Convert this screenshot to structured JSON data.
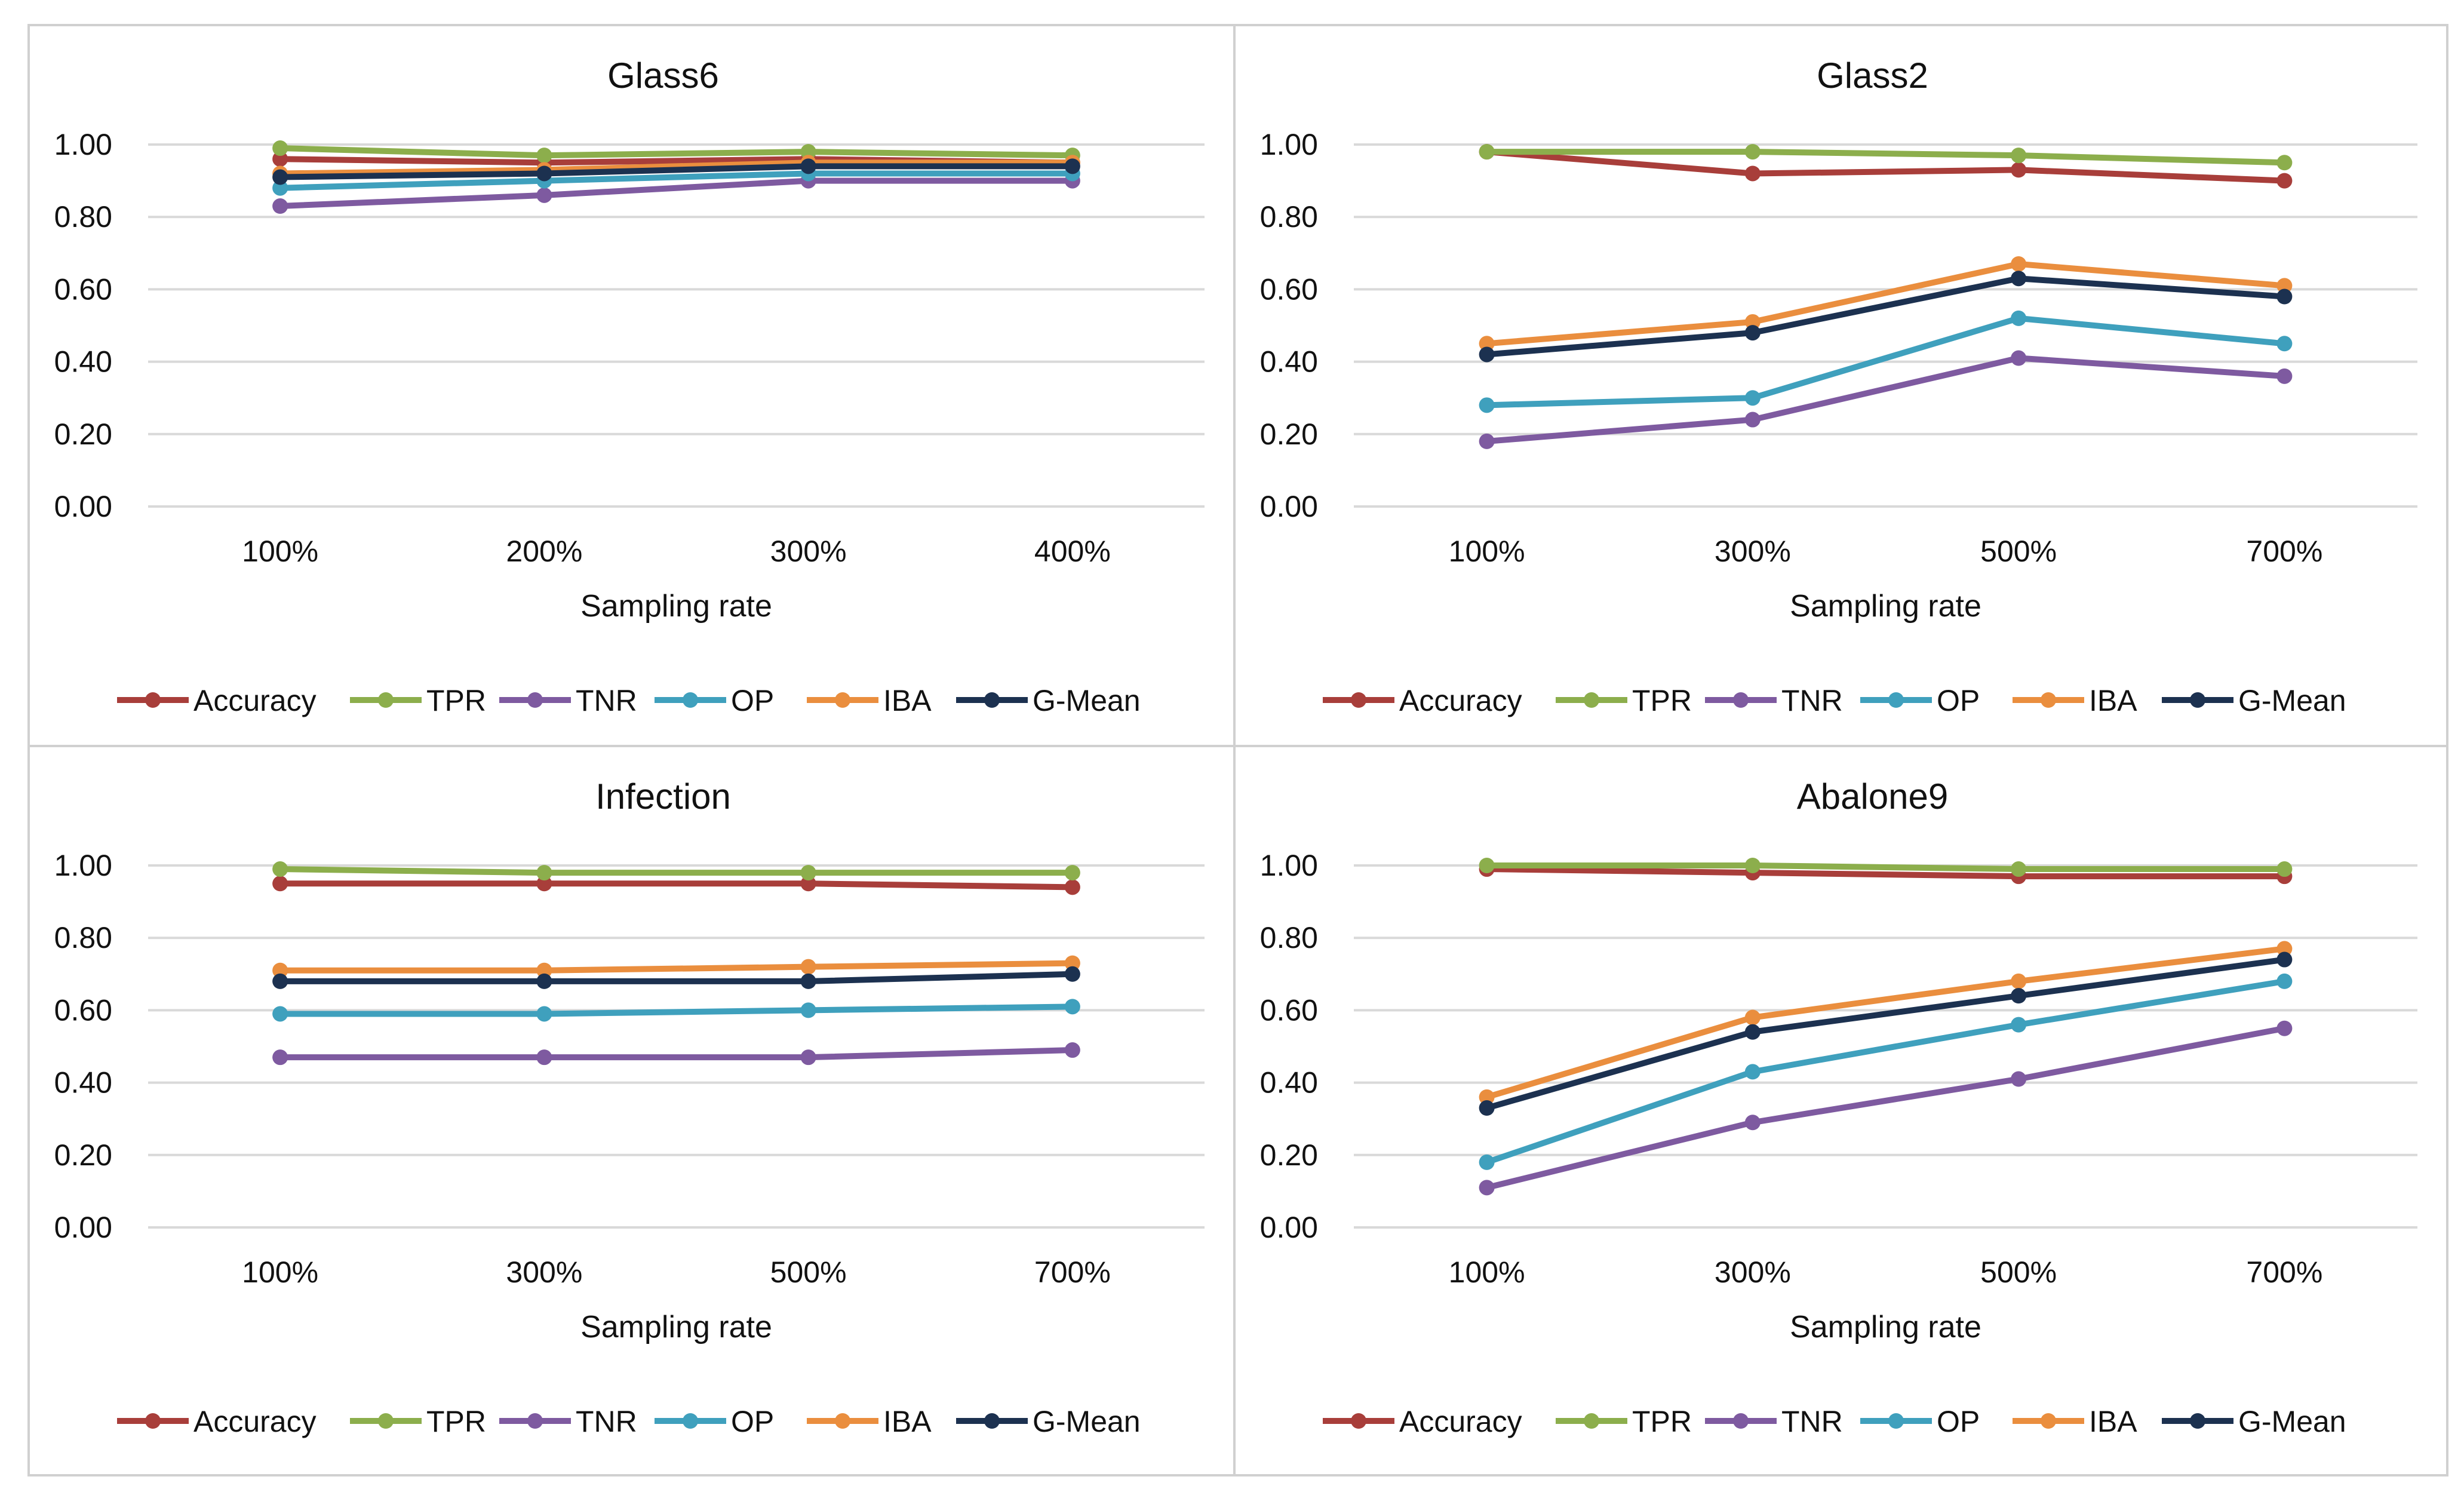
{
  "chart_data": [
    {
      "type": "line",
      "title": "Glass6",
      "xlabel": "Sampling rate",
      "ylabel": "",
      "categories": [
        "100%",
        "200%",
        "300%",
        "400%"
      ],
      "yticks": [
        "0.00",
        "0.20",
        "0.40",
        "0.60",
        "0.80",
        "1.00"
      ],
      "ylim": [
        0,
        1
      ],
      "grid": true,
      "legend_position": "bottom",
      "series": [
        {
          "name": "Accuracy",
          "color": "#A83E3A",
          "values": [
            0.96,
            0.95,
            0.96,
            0.95
          ]
        },
        {
          "name": "TPR",
          "color": "#8CAE4C",
          "values": [
            0.99,
            0.97,
            0.98,
            0.97
          ]
        },
        {
          "name": "TNR",
          "color": "#7E5AA0",
          "values": [
            0.83,
            0.86,
            0.9,
            0.9
          ]
        },
        {
          "name": "OP",
          "color": "#3FA0BD",
          "values": [
            0.88,
            0.9,
            0.92,
            0.92
          ]
        },
        {
          "name": "IBA",
          "color": "#EA8E3E",
          "values": [
            0.92,
            0.93,
            0.95,
            0.95
          ]
        },
        {
          "name": "G-Mean",
          "color": "#1C3150",
          "values": [
            0.91,
            0.92,
            0.94,
            0.94
          ]
        }
      ]
    },
    {
      "type": "line",
      "title": "Glass2",
      "xlabel": "Sampling rate",
      "ylabel": "",
      "categories": [
        "100%",
        "300%",
        "500%",
        "700%"
      ],
      "yticks": [
        "0.00",
        "0.20",
        "0.40",
        "0.60",
        "0.80",
        "1.00"
      ],
      "ylim": [
        0,
        1
      ],
      "grid": true,
      "legend_position": "bottom",
      "series": [
        {
          "name": "Accuracy",
          "color": "#A83E3A",
          "values": [
            0.98,
            0.92,
            0.93,
            0.9
          ]
        },
        {
          "name": "TPR",
          "color": "#8CAE4C",
          "values": [
            0.98,
            0.98,
            0.97,
            0.95
          ]
        },
        {
          "name": "TNR",
          "color": "#7E5AA0",
          "values": [
            0.18,
            0.24,
            0.41,
            0.36
          ]
        },
        {
          "name": "OP",
          "color": "#3FA0BD",
          "values": [
            0.28,
            0.3,
            0.52,
            0.45
          ]
        },
        {
          "name": "IBA",
          "color": "#EA8E3E",
          "values": [
            0.45,
            0.51,
            0.67,
            0.61
          ]
        },
        {
          "name": "G-Mean",
          "color": "#1C3150",
          "values": [
            0.42,
            0.48,
            0.63,
            0.58
          ]
        }
      ]
    },
    {
      "type": "line",
      "title": "Infection",
      "xlabel": "Sampling rate",
      "ylabel": "",
      "categories": [
        "100%",
        "300%",
        "500%",
        "700%"
      ],
      "yticks": [
        "0.00",
        "0.20",
        "0.40",
        "0.60",
        "0.80",
        "1.00"
      ],
      "ylim": [
        0,
        1
      ],
      "grid": true,
      "legend_position": "bottom",
      "series": [
        {
          "name": "Accuracy",
          "color": "#A83E3A",
          "values": [
            0.95,
            0.95,
            0.95,
            0.94
          ]
        },
        {
          "name": "TPR",
          "color": "#8CAE4C",
          "values": [
            0.99,
            0.98,
            0.98,
            0.98
          ]
        },
        {
          "name": "TNR",
          "color": "#7E5AA0",
          "values": [
            0.47,
            0.47,
            0.47,
            0.49
          ]
        },
        {
          "name": "OP",
          "color": "#3FA0BD",
          "values": [
            0.59,
            0.59,
            0.6,
            0.61
          ]
        },
        {
          "name": "IBA",
          "color": "#EA8E3E",
          "values": [
            0.71,
            0.71,
            0.72,
            0.73
          ]
        },
        {
          "name": "G-Mean",
          "color": "#1C3150",
          "values": [
            0.68,
            0.68,
            0.68,
            0.7
          ]
        }
      ]
    },
    {
      "type": "line",
      "title": "Abalone9",
      "xlabel": "Sampling rate",
      "ylabel": "",
      "categories": [
        "100%",
        "300%",
        "500%",
        "700%"
      ],
      "yticks": [
        "0.00",
        "0.20",
        "0.40",
        "0.60",
        "0.80",
        "1.00"
      ],
      "ylim": [
        0,
        1
      ],
      "grid": true,
      "legend_position": "bottom",
      "series": [
        {
          "name": "Accuracy",
          "color": "#A83E3A",
          "values": [
            0.99,
            0.98,
            0.97,
            0.97
          ]
        },
        {
          "name": "TPR",
          "color": "#8CAE4C",
          "values": [
            1.0,
            1.0,
            0.99,
            0.99
          ]
        },
        {
          "name": "TNR",
          "color": "#7E5AA0",
          "values": [
            0.11,
            0.29,
            0.41,
            0.55
          ]
        },
        {
          "name": "OP",
          "color": "#3FA0BD",
          "values": [
            0.18,
            0.43,
            0.56,
            0.68
          ]
        },
        {
          "name": "IBA",
          "color": "#EA8E3E",
          "values": [
            0.36,
            0.58,
            0.68,
            0.77
          ]
        },
        {
          "name": "G-Mean",
          "color": "#1C3150",
          "values": [
            0.33,
            0.54,
            0.64,
            0.74
          ]
        }
      ]
    }
  ]
}
